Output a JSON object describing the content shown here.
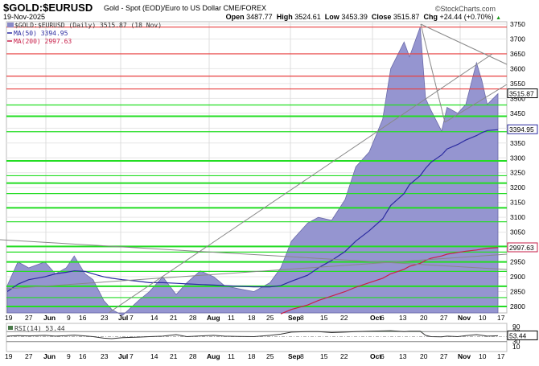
{
  "header": {
    "symbol": "$GOLD:$EURUSD",
    "description": "Gold - Spot (EOD)/Euro to US Dollar  CME/FOREX",
    "date": "19-Nov-2025",
    "watermark": "©StockCharts.com",
    "open_label": "Open",
    "open": "3487.77",
    "high_label": "High",
    "high": "3524.61",
    "low_label": "Low",
    "low": "3453.39",
    "close_label": "Close",
    "close": "3515.87",
    "chg_label": "Chg",
    "chg": "+24.44 (+0.70%)",
    "chg_icon": "up-triangle"
  },
  "legend": {
    "price": "$GOLD:$EURUSD (Daily) 3515.87 (18 Nov)",
    "ma50": "MA(50) 3394.95",
    "ma200": "MA(200) 2997.63",
    "rsi": "RSI(14) 53.44"
  },
  "price_tags": {
    "close": "3515.87",
    "ma50": "3394.95",
    "ma200": "2997.63",
    "rsi": "53.44"
  },
  "colors": {
    "area_fill": "#9595d0",
    "area_stroke": "#6a6aa8",
    "ma50": "#2b2ba0",
    "ma200": "#c8204a",
    "resistance": "#e84040",
    "support": "#22dd22",
    "trendline": "#888888",
    "rsi_fill": "#6f946f"
  },
  "chart_data": {
    "type": "area",
    "title": "$GOLD:$EURUSD Gold - Spot (EOD)/Euro to US Dollar",
    "xlabel": "",
    "ylabel": "",
    "ylim": [
      2775,
      3760
    ],
    "grid": true,
    "legend_position": "top-left",
    "x_tick_labels": [
      "19",
      "27",
      "Jun",
      "9",
      "16",
      "23",
      "Jul",
      "7",
      "14",
      "21",
      "28",
      "Aug",
      "11",
      "18",
      "25",
      "Sep",
      "8",
      "15",
      "22",
      "Oct",
      "6",
      "13",
      "20",
      "27",
      "Nov",
      "10",
      "17"
    ],
    "y_tick_labels": [
      "3750",
      "3700",
      "3650",
      "3600",
      "3550",
      "3500",
      "3450",
      "3400",
      "3350",
      "3300",
      "3250",
      "3200",
      "3150",
      "3100",
      "3050",
      "3000",
      "2950",
      "2900",
      "2850",
      "2800"
    ],
    "x": [
      "2025-05-19",
      "2025-05-23",
      "2025-05-27",
      "2025-06-02",
      "2025-06-06",
      "2025-06-10",
      "2025-06-13",
      "2025-06-17",
      "2025-06-20",
      "2025-06-24",
      "2025-06-27",
      "2025-07-01",
      "2025-07-07",
      "2025-07-11",
      "2025-07-16",
      "2025-07-21",
      "2025-07-25",
      "2025-07-30",
      "2025-08-04",
      "2025-08-08",
      "2025-08-13",
      "2025-08-19",
      "2025-08-25",
      "2025-08-29",
      "2025-09-02",
      "2025-09-08",
      "2025-09-12",
      "2025-09-17",
      "2025-09-22",
      "2025-09-26",
      "2025-10-01",
      "2025-10-06",
      "2025-10-09",
      "2025-10-14",
      "2025-10-16",
      "2025-10-20",
      "2025-10-22",
      "2025-10-24",
      "2025-10-28",
      "2025-10-30",
      "2025-11-03",
      "2025-11-06",
      "2025-11-10",
      "2025-11-12",
      "2025-11-14",
      "2025-11-18"
    ],
    "series": [
      {
        "name": "$GOLD:$EURUSD (Daily)",
        "values": [
          2870,
          2950,
          2930,
          2950,
          2910,
          2930,
          2970,
          2910,
          2890,
          2820,
          2790,
          2770,
          2820,
          2850,
          2900,
          2840,
          2880,
          2920,
          2900,
          2870,
          2860,
          2850,
          2880,
          2930,
          3020,
          3080,
          3100,
          3090,
          3160,
          3270,
          3320,
          3430,
          3600,
          3690,
          3640,
          3740,
          3500,
          3460,
          3390,
          3470,
          3450,
          3480,
          3620,
          3560,
          3480,
          3516
        ]
      },
      {
        "name": "MA(50)",
        "values": [
          2850,
          2875,
          2890,
          2900,
          2910,
          2915,
          2920,
          2918,
          2910,
          2900,
          2895,
          2890,
          2885,
          2880,
          2880,
          2878,
          2876,
          2874,
          2872,
          2870,
          2868,
          2866,
          2866,
          2870,
          2885,
          2905,
          2930,
          2955,
          2985,
          3020,
          3055,
          3095,
          3140,
          3180,
          3210,
          3240,
          3265,
          3285,
          3310,
          3330,
          3345,
          3360,
          3375,
          3385,
          3392,
          3395
        ]
      },
      {
        "name": "MA(200)",
        "values": [
          null,
          null,
          null,
          null,
          null,
          null,
          null,
          null,
          null,
          null,
          null,
          null,
          null,
          null,
          null,
          null,
          null,
          null,
          null,
          null,
          null,
          null,
          null,
          2775,
          2790,
          2805,
          2820,
          2835,
          2850,
          2865,
          2880,
          2895,
          2910,
          2925,
          2935,
          2945,
          2955,
          2962,
          2970,
          2976,
          2982,
          2986,
          2990,
          2993,
          2996,
          2998
        ]
      },
      {
        "name": "RSI(14)",
        "values": [
          52,
          54,
          53,
          55,
          52,
          54,
          56,
          53,
          50,
          44,
          42,
          46,
          48,
          50,
          52,
          58,
          50,
          53,
          55,
          52,
          51,
          50,
          55,
          60,
          68,
          70,
          70,
          66,
          68,
          70,
          72,
          73,
          74,
          70,
          72,
          72,
          55,
          50,
          49,
          52,
          50,
          54,
          58,
          55,
          52,
          53.44
        ]
      }
    ],
    "horizontal_levels": {
      "resistance": [
        3740,
        3650,
        3575,
        3532
      ],
      "support": [
        3478,
        3440,
        3388,
        3290,
        3240,
        3215,
        3180,
        3132,
        3085,
        3002,
        2983,
        2950,
        2918,
        2868,
        2830,
        2800
      ]
    },
    "rsi_levels": [
      90,
      70,
      30,
      10
    ]
  }
}
